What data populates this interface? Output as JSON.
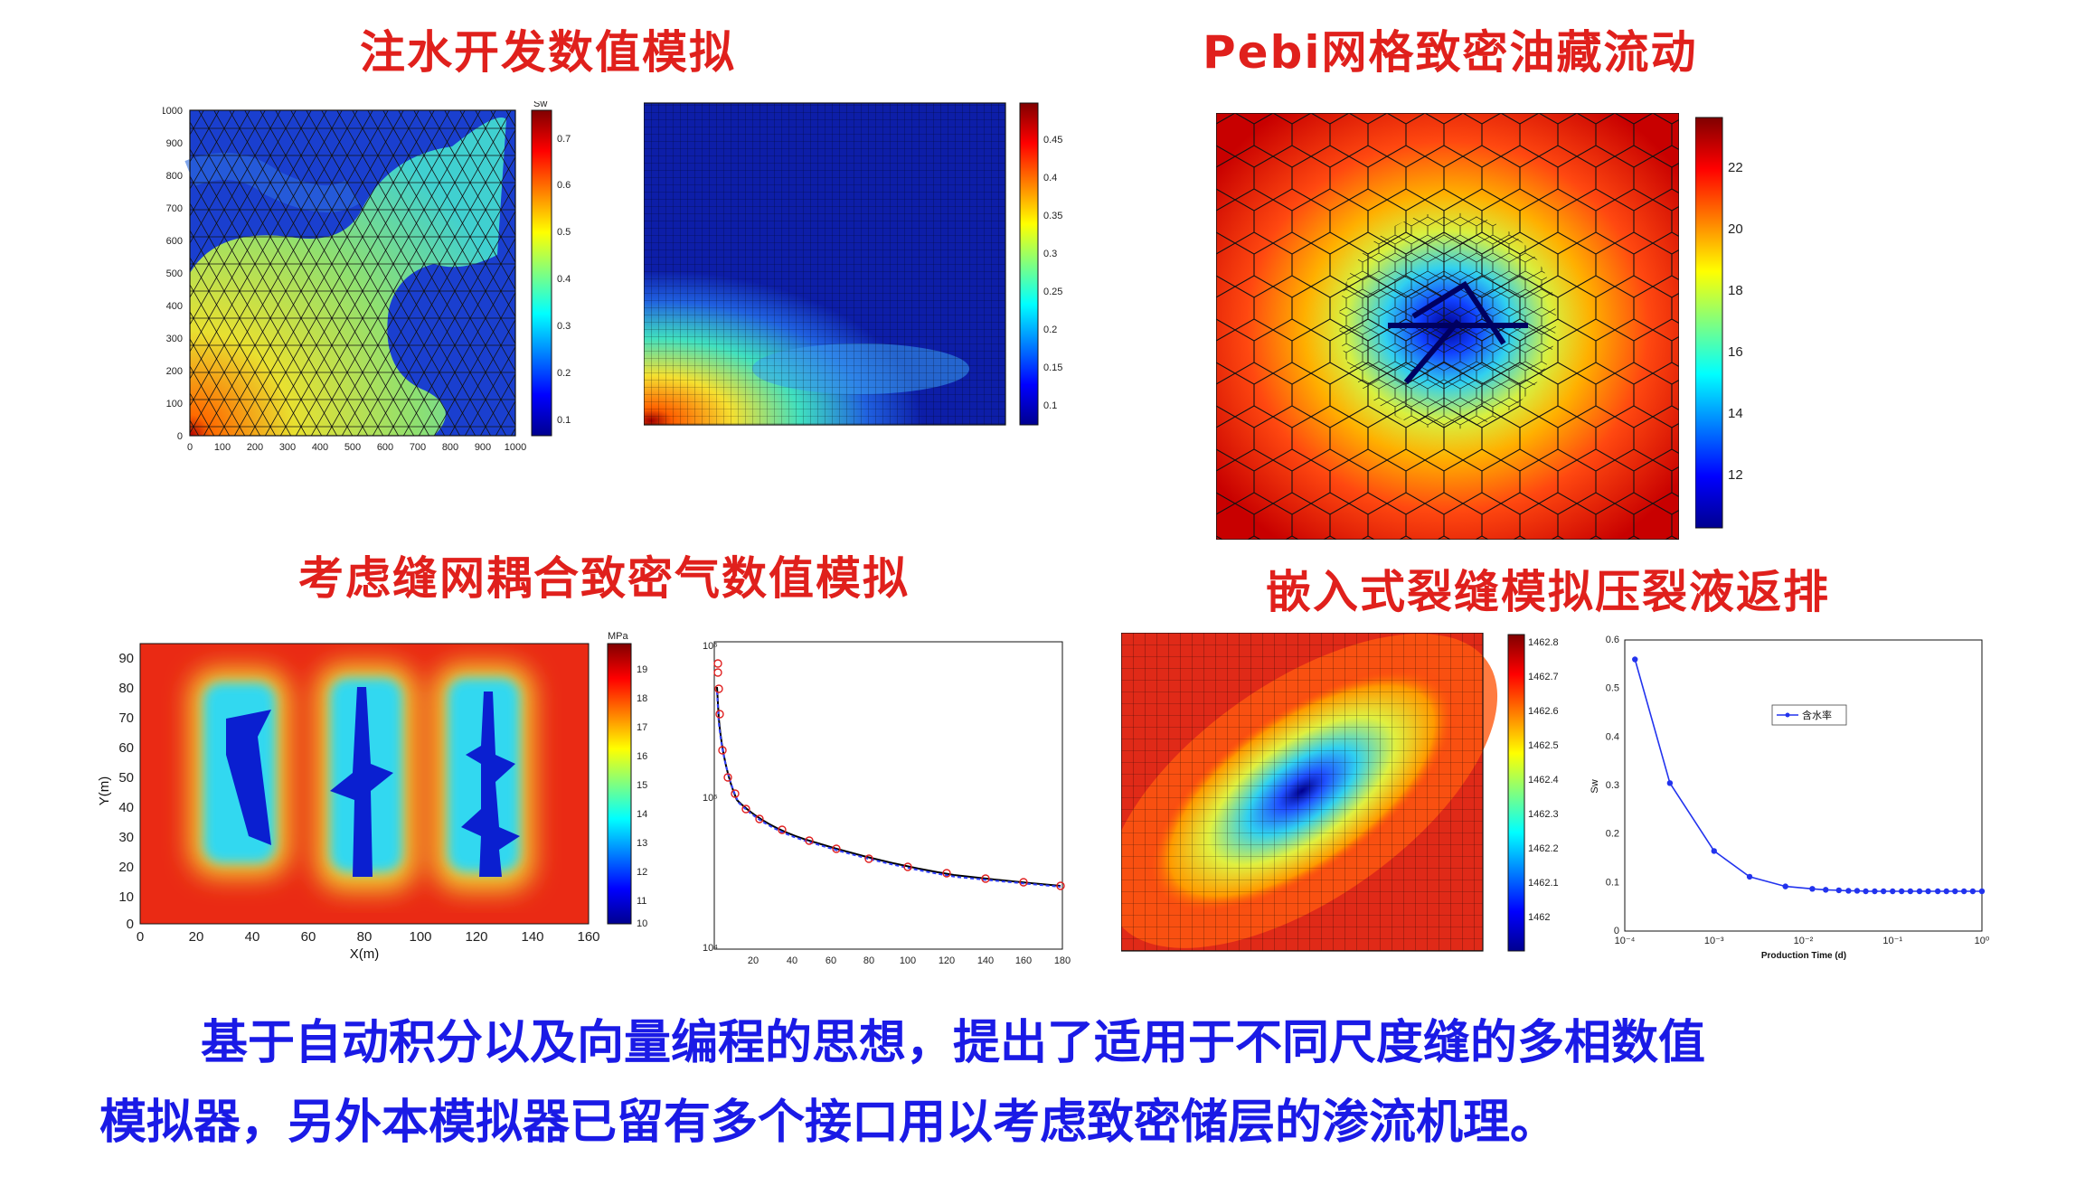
{
  "titles": {
    "top_left": "注水开发数值模拟",
    "top_right": "Pebi网格致密油藏流动",
    "bottom_left": "考虑缝网耦合致密气数值模拟",
    "bottom_right": "嵌入式裂缝模拟压裂液返排"
  },
  "panel_a": {
    "colorbar_label": "Sw",
    "colorbar_ticks": [
      "0.7",
      "0.6",
      "0.5",
      "0.4",
      "0.3",
      "0.2",
      "0.1"
    ],
    "x_ticks": [
      "0",
      "100",
      "200",
      "300",
      "400",
      "500",
      "600",
      "700",
      "800",
      "900",
      "1000"
    ],
    "y_ticks": [
      "1000",
      "900",
      "800",
      "700",
      "600",
      "500",
      "400",
      "300",
      "200",
      "100",
      "0"
    ]
  },
  "panel_b": {
    "colorbar_ticks": [
      "0.45",
      "0.4",
      "0.35",
      "0.3",
      "0.25",
      "0.2",
      "0.15",
      "0.1"
    ]
  },
  "panel_c": {
    "colorbar_ticks": [
      "22",
      "20",
      "18",
      "16",
      "14",
      "12"
    ]
  },
  "panel_d": {
    "colorbar_label": "MPa",
    "colorbar_ticks": [
      "19",
      "18",
      "17",
      "16",
      "15",
      "14",
      "13",
      "12",
      "11",
      "10"
    ],
    "xlabel": "X(m)",
    "ylabel": "Y(m)",
    "x_ticks": [
      "0",
      "20",
      "40",
      "60",
      "80",
      "100",
      "120",
      "140",
      "160"
    ],
    "y_ticks": [
      "90",
      "80",
      "70",
      "60",
      "50",
      "40",
      "30",
      "20",
      "10",
      "0"
    ]
  },
  "panel_e": {
    "x_ticks": [
      "20",
      "40",
      "60",
      "80",
      "100",
      "120",
      "140",
      "160",
      "180"
    ],
    "y_ticks": [
      "10⁶",
      "10⁵",
      "10⁴"
    ]
  },
  "panel_f": {
    "colorbar_ticks": [
      "1462.8",
      "1462.7",
      "1462.6",
      "1462.5",
      "1462.4",
      "1462.3",
      "1462.2",
      "1462.1",
      "1462"
    ]
  },
  "chart_data": {
    "type": "line",
    "xlabel": "Production Time (d)",
    "ylabel": "Sw",
    "x_scale": "log",
    "x_ticks": [
      "10⁻⁴",
      "10⁻³",
      "10⁻²",
      "10⁻¹",
      "10⁰"
    ],
    "y_ticks": [
      "0.6",
      "0.5",
      "0.4",
      "0.3",
      "0.2",
      "0.1",
      "0"
    ],
    "ylim": [
      0,
      0.6
    ],
    "legend": "top-right",
    "series": [
      {
        "name": "含水率",
        "color": "#2233ee",
        "x": [
          0.00013,
          0.00032,
          0.001,
          0.0025,
          0.0063,
          0.0126,
          0.0178,
          0.025,
          0.032,
          0.04,
          0.05,
          0.063,
          0.079,
          0.1,
          0.126,
          0.158,
          0.2,
          0.25,
          0.32,
          0.4,
          0.5,
          0.63,
          0.79,
          1.0
        ],
        "values": [
          0.56,
          0.305,
          0.165,
          0.112,
          0.092,
          0.087,
          0.085,
          0.084,
          0.083,
          0.083,
          0.082,
          0.082,
          0.082,
          0.082,
          0.082,
          0.082,
          0.082,
          0.082,
          0.082,
          0.082,
          0.082,
          0.082,
          0.082,
          0.082
        ]
      }
    ]
  },
  "paragraph": {
    "line1": "基于自动积分以及向量编程的思想，提出了适用于不同尺度缝的多相数值",
    "line2": "模拟器，另外本模拟器已留有多个接口用以考虑致密储层的渗流机理。"
  },
  "colors": {
    "title_red": "#e0201c",
    "paragraph_blue": "#1a1ae6"
  }
}
